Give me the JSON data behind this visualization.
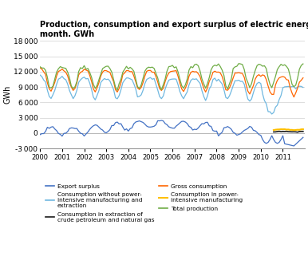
{
  "title": "Production, consumption and export surplus of electric energy per\nmonth. GWh",
  "ylabel": "GWh",
  "ylim": [
    -3000,
    18000
  ],
  "yticks": [
    -3000,
    0,
    3000,
    6000,
    9000,
    12000,
    15000,
    18000
  ],
  "xlim_start": 2000.0,
  "xlim_end": 2012.0,
  "colors": {
    "export_surplus": "#4472C4",
    "crude_petroleum": "#1a1a1a",
    "power_intensive": "#FFC000",
    "without_power": "#70B8E0",
    "gross_consumption": "#FF6600",
    "total_production": "#70AD47"
  }
}
